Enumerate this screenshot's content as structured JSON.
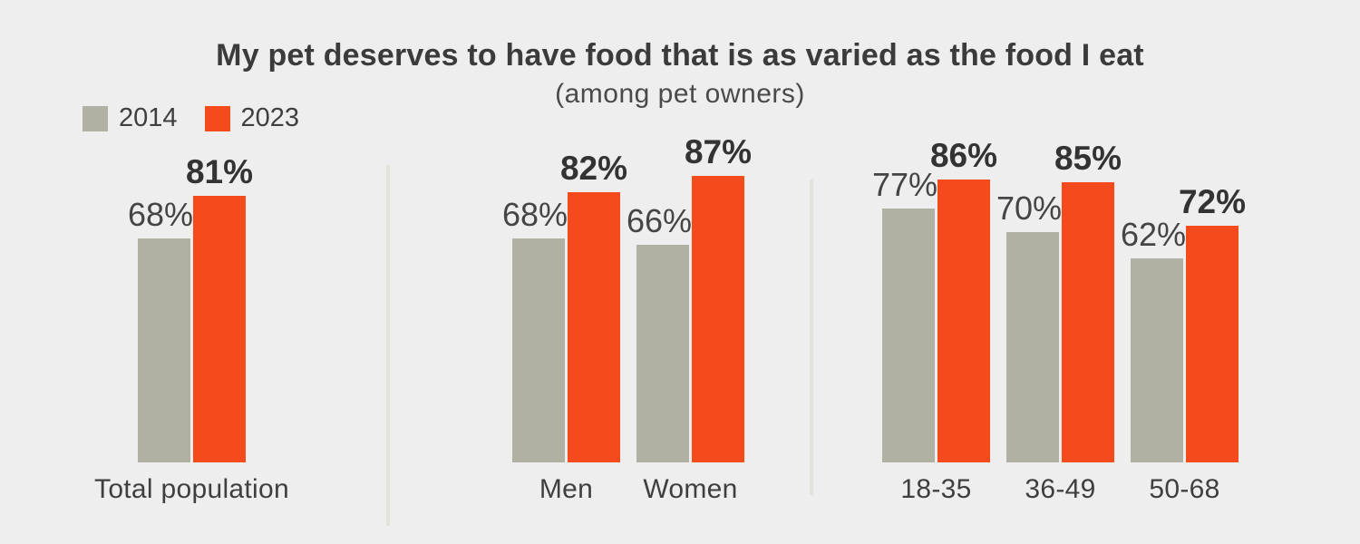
{
  "page": {
    "background_color": "#eeeeee"
  },
  "header": {
    "title": "My pet deserves to have food that is as varied as the food I eat",
    "subtitle": "(among pet owners)"
  },
  "legend": {
    "items": [
      {
        "label": "2014",
        "color": "#b0b1a2"
      },
      {
        "label": "2023",
        "color": "#f54a1c"
      }
    ]
  },
  "chart_data": {
    "type": "bar",
    "title": "My pet deserves to have food that is as varied as the food I eat",
    "subtitle": "(among pet owners)",
    "unit": "%",
    "ylim": [
      0,
      100
    ],
    "grid": false,
    "legend_position": "top-left",
    "value_labels": "above bars, 2014 regular weight, 2023 bold",
    "series": [
      {
        "name": "2014",
        "color": "#b0b1a2"
      },
      {
        "name": "2023",
        "color": "#f54a1c"
      }
    ],
    "groups": [
      {
        "bars": [
          {
            "label": "Total population",
            "values": [
              68,
              81
            ]
          }
        ]
      },
      {
        "bars": [
          {
            "label": "Men",
            "values": [
              68,
              82
            ]
          },
          {
            "label": "Women",
            "values": [
              66,
              87
            ]
          }
        ]
      },
      {
        "bars": [
          {
            "label": "18-35",
            "values": [
              77,
              86
            ]
          },
          {
            "label": "36-49",
            "values": [
              70,
              85
            ]
          },
          {
            "label": "50-68",
            "values": [
              62,
              72
            ]
          }
        ]
      }
    ]
  }
}
